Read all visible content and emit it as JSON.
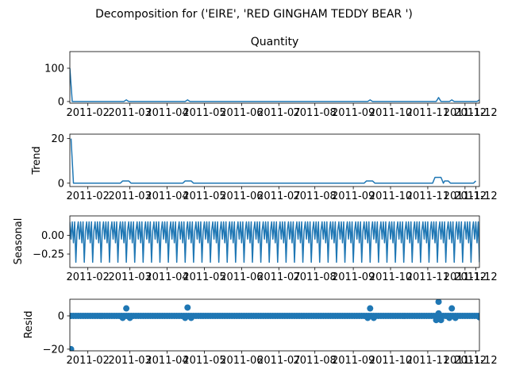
{
  "figure": {
    "suptitle": "Decomposition for ('EIRE', 'RED GINGHAM TEDDY BEAR ')"
  },
  "chart_data": [
    {
      "type": "line",
      "title": "Quantity",
      "ylabel": "",
      "ylim": [
        -5,
        150
      ],
      "yticks": [
        "0",
        "100"
      ],
      "ytick_values": [
        0,
        100
      ],
      "xlim": [
        "2011-01-06",
        "2011-12-13"
      ],
      "xticks": [
        "2011-02",
        "2011-03",
        "2011-04",
        "2011-05",
        "2011-06",
        "2011-07",
        "2011-08",
        "2011-09",
        "2011-10",
        "2011-11",
        "2011-12",
        "2011-12"
      ],
      "xtick_dates": [
        "2011-01-21",
        "2011-02-25",
        "2011-03-28",
        "2011-04-28",
        "2011-05-29",
        "2011-06-29",
        "2011-07-29",
        "2011-08-30",
        "2011-09-30",
        "2011-10-31",
        "2011-12-01",
        "2011-12-10"
      ],
      "series": [
        {
          "points": [
            [
              "2011-01-06",
              100
            ],
            [
              "2011-01-08",
              0
            ],
            [
              "2011-02-20",
              0
            ],
            [
              "2011-02-22",
              5
            ],
            [
              "2011-02-24",
              0
            ],
            [
              "2011-04-12",
              0
            ],
            [
              "2011-04-14",
              5
            ],
            [
              "2011-04-16",
              0
            ],
            [
              "2011-09-11",
              0
            ],
            [
              "2011-09-13",
              5
            ],
            [
              "2011-09-15",
              0
            ],
            [
              "2011-11-07",
              0
            ],
            [
              "2011-11-09",
              12
            ],
            [
              "2011-11-11",
              0
            ],
            [
              "2011-11-18",
              0
            ],
            [
              "2011-11-20",
              5
            ],
            [
              "2011-11-22",
              0
            ],
            [
              "2011-12-11",
              0
            ],
            [
              "2011-12-13",
              5
            ]
          ]
        }
      ]
    },
    {
      "type": "line",
      "title": "",
      "ylabel": "Trend",
      "ylim": [
        -1.5,
        22
      ],
      "yticks": [
        "0",
        "20"
      ],
      "ytick_values": [
        0,
        20
      ],
      "xlim": [
        "2011-01-06",
        "2011-12-13"
      ],
      "xticks": [
        "2011-02",
        "2011-03",
        "2011-04",
        "2011-05",
        "2011-06",
        "2011-07",
        "2011-08",
        "2011-09",
        "2011-10",
        "2011-11",
        "2011-12",
        "2011-12"
      ],
      "xtick_dates": [
        "2011-01-21",
        "2011-02-25",
        "2011-03-28",
        "2011-04-28",
        "2011-05-29",
        "2011-06-29",
        "2011-07-29",
        "2011-08-30",
        "2011-09-30",
        "2011-10-31",
        "2011-12-01",
        "2011-12-10"
      ],
      "series": [
        {
          "points": [
            [
              "2011-01-07",
              20
            ],
            [
              "2011-01-09",
              0
            ],
            [
              "2011-02-17",
              0
            ],
            [
              "2011-02-19",
              1
            ],
            [
              "2011-02-24",
              1
            ],
            [
              "2011-02-26",
              0
            ],
            [
              "2011-04-10",
              0
            ],
            [
              "2011-04-12",
              1
            ],
            [
              "2011-04-17",
              1
            ],
            [
              "2011-04-19",
              0
            ],
            [
              "2011-09-08",
              0
            ],
            [
              "2011-09-10",
              1
            ],
            [
              "2011-09-15",
              1
            ],
            [
              "2011-09-17",
              0
            ],
            [
              "2011-11-04",
              0
            ],
            [
              "2011-11-06",
              2.6
            ],
            [
              "2011-11-11",
              2.6
            ],
            [
              "2011-11-13",
              0
            ],
            [
              "2011-11-14",
              1
            ],
            [
              "2011-11-17",
              1
            ],
            [
              "2011-11-19",
              0
            ],
            [
              "2011-12-08",
              0
            ],
            [
              "2011-12-10",
              1
            ]
          ]
        }
      ]
    },
    {
      "type": "line",
      "title": "",
      "ylabel": "Seasonal",
      "ylim": [
        -0.43,
        0.26
      ],
      "yticks": [
        "0.00",
        "−0.25"
      ],
      "ytick_values": [
        0,
        -0.25
      ],
      "xlim": [
        "2011-01-06",
        "2011-12-13"
      ],
      "xticks": [
        "2011-02",
        "2011-03",
        "2011-04",
        "2011-05",
        "2011-06",
        "2011-07",
        "2011-08",
        "2011-09",
        "2011-10",
        "2011-11",
        "2011-12",
        "2011-12"
      ],
      "xtick_dates": [
        "2011-01-21",
        "2011-02-25",
        "2011-03-28",
        "2011-04-28",
        "2011-05-29",
        "2011-06-29",
        "2011-07-29",
        "2011-08-30",
        "2011-09-30",
        "2011-10-31",
        "2011-12-01",
        "2011-12-10"
      ],
      "period_days": 7,
      "weekly_pattern": [
        0.18,
        -0.05,
        0.18,
        -0.1,
        0.18,
        -0.36,
        0.06
      ],
      "series": [
        {
          "start": "2011-01-06",
          "end": "2011-12-13"
        }
      ]
    },
    {
      "type": "scatter",
      "title": "",
      "ylabel": "Resid",
      "ylim": [
        -21,
        10
      ],
      "yticks": [
        "0",
        "−20"
      ],
      "ytick_values": [
        0,
        -20
      ],
      "xlim": [
        "2011-01-06",
        "2011-12-13"
      ],
      "xticks": [
        "2011-02",
        "2011-03",
        "2011-04",
        "2011-05",
        "2011-06",
        "2011-07",
        "2011-08",
        "2011-09",
        "2011-10",
        "2011-11",
        "2011-12",
        "2011-12"
      ],
      "xtick_dates": [
        "2011-01-21",
        "2011-02-25",
        "2011-03-28",
        "2011-04-28",
        "2011-05-29",
        "2011-06-29",
        "2011-07-29",
        "2011-08-30",
        "2011-09-30",
        "2011-10-31",
        "2011-12-01",
        "2011-12-10"
      ],
      "baseline": {
        "start": "2011-01-07",
        "end": "2011-12-13",
        "step_days": 2,
        "value": 0
      },
      "points": [
        [
          "2011-01-07",
          -20
        ],
        [
          "2011-02-22",
          4.5
        ],
        [
          "2011-02-19",
          -1.2
        ],
        [
          "2011-02-25",
          -1.2
        ],
        [
          "2011-04-14",
          5
        ],
        [
          "2011-04-12",
          -1.2
        ],
        [
          "2011-04-17",
          -1.2
        ],
        [
          "2011-09-13",
          4.5
        ],
        [
          "2011-09-11",
          -1.2
        ],
        [
          "2011-09-16",
          -1.2
        ],
        [
          "2011-11-09",
          8.5
        ],
        [
          "2011-11-09",
          1.5
        ],
        [
          "2011-11-07",
          -2.5
        ],
        [
          "2011-11-11",
          -2.5
        ],
        [
          "2011-11-20",
          4.5
        ],
        [
          "2011-11-18",
          -1.2
        ],
        [
          "2011-11-23",
          -1.2
        ],
        [
          "2011-12-13",
          -0.8
        ]
      ]
    }
  ]
}
